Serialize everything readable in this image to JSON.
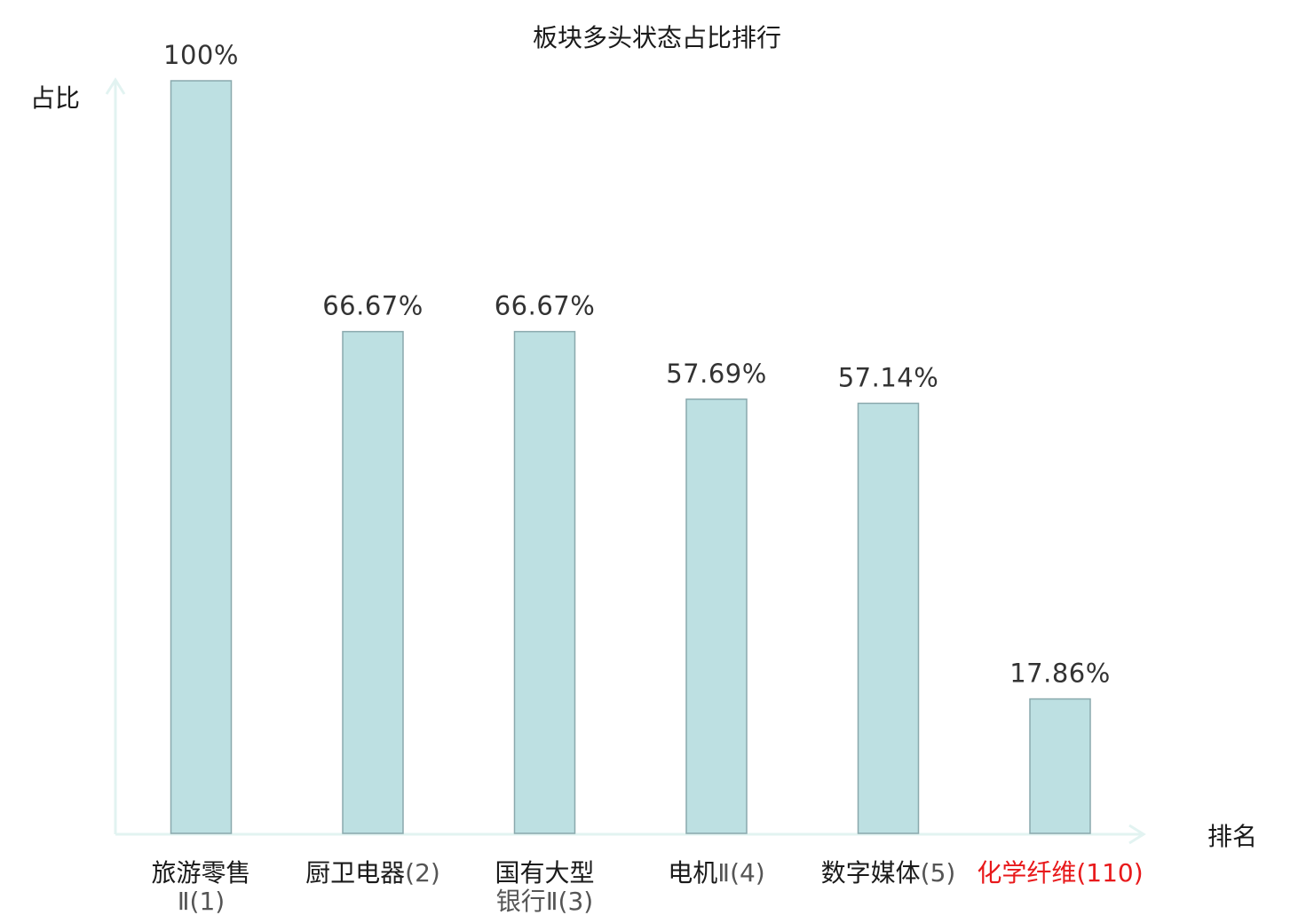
{
  "chart_data": {
    "type": "bar",
    "title": "板块多头状态占比排行",
    "ylabel": "占比",
    "xlabel": "排名",
    "ylim": [
      0,
      100
    ],
    "grid": false,
    "bar_color": "#bde0e2",
    "bar_border_color": "#8aa9ad",
    "highlight_color": "#e8191b",
    "axis_color": "#e2f3f1",
    "categories": [
      {
        "name": "旅游零售",
        "rank": "Ⅱ(1)",
        "highlight": false
      },
      {
        "name": "厨卫电器",
        "rank": "(2)",
        "highlight": false
      },
      {
        "name": "国有大型",
        "rank": "银行Ⅱ(3)",
        "highlight": false
      },
      {
        "name": "电机",
        "rank": "Ⅱ(4)",
        "highlight": false
      },
      {
        "name": "数字媒体",
        "rank": "(5)",
        "highlight": false
      },
      {
        "name": "化学纤维",
        "rank": "(110)",
        "highlight": true
      }
    ],
    "values": [
      100,
      66.67,
      66.67,
      57.69,
      57.14,
      17.86
    ],
    "value_labels": [
      "100%",
      "66.67%",
      "66.67%",
      "57.69%",
      "57.14%",
      "17.86%"
    ]
  }
}
